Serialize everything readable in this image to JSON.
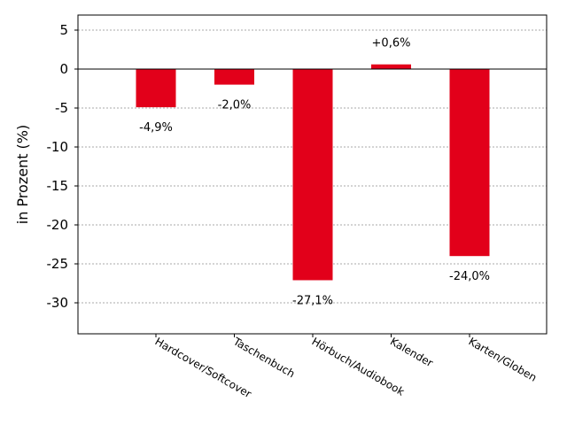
{
  "chart_data": {
    "type": "bar",
    "categories": [
      "Hardcover/Softcover",
      "Taschenbuch",
      "Hörbuch/Audiobook",
      "Kalender",
      "Karten/Globen"
    ],
    "values": [
      -4.9,
      -2.0,
      -27.1,
      0.6,
      -24.0
    ],
    "data_labels": [
      "-4,9%",
      "-2,0%",
      "-27,1%",
      "+0,6%",
      "-24,0%"
    ],
    "ylabel": "in Prozent (%)",
    "yticks": [
      5,
      0,
      -5,
      -10,
      -15,
      -20,
      -25,
      -30
    ],
    "ytick_labels": [
      "5",
      "0",
      "-5",
      "-10",
      "-15",
      "-20",
      "-25",
      "-30"
    ],
    "ylim": [
      -34,
      7
    ],
    "grid": "horizontal-dotted",
    "bar_color": "#e2001a",
    "zero_line": true
  }
}
